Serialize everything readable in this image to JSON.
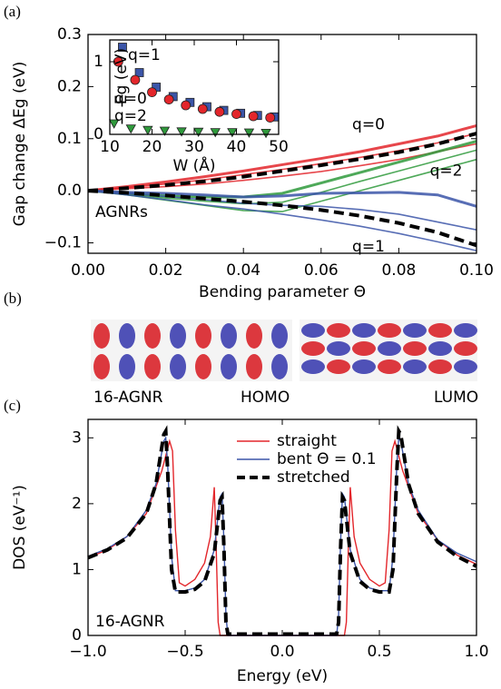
{
  "panel_labels": [
    "(a)",
    "(b)",
    "(c)"
  ],
  "panel_b": {
    "ribbon": "16-AGNR",
    "homo": "HOMO",
    "lumo": "LUMO"
  },
  "chart_data": [
    {
      "type": "line",
      "x_label": "Bending parameter Θ",
      "y_label": "Gap change ΔEg (eV)",
      "annotation": "AGNRs",
      "x": [
        0,
        0.01,
        0.02,
        0.03,
        0.04,
        0.05,
        0.06,
        0.07,
        0.08,
        0.09,
        0.1
      ],
      "xlim": [
        0,
        0.1
      ],
      "xticks": [
        {
          "value": 0,
          "label": "0.00"
        },
        {
          "value": 0.02,
          "label": "0.02"
        },
        {
          "value": 0.04,
          "label": "0.04"
        },
        {
          "value": 0.06,
          "label": "0.06"
        },
        {
          "value": 0.08,
          "label": "0.08"
        },
        {
          "value": 0.1,
          "label": "0.10"
        }
      ],
      "ylim": [
        -0.12,
        0.3
      ],
      "yticks": [
        {
          "value": -0.1,
          "label": "−0.1"
        },
        {
          "value": 0,
          "label": "0.0"
        },
        0.1,
        0.2,
        0.3
      ],
      "fit_color": "#000000",
      "series": [
        {
          "name": "q=0",
          "color": "#e3262b",
          "band": [
            [
              0,
              0.008,
              0.017,
              0.027,
              0.038,
              0.05,
              0.062,
              0.075,
              0.09,
              0.105,
              0.125
            ],
            [
              0,
              0.006,
              0.013,
              0.021,
              0.031,
              0.041,
              0.052,
              0.064,
              0.077,
              0.092,
              0.11
            ],
            [
              0,
              0.004,
              0.008,
              0.013,
              0.02,
              0.028,
              0.037,
              0.048,
              0.06,
              0.075,
              0.09
            ]
          ],
          "values": [
            0,
            0.005,
            0.011,
            0.018,
            0.027,
            0.038,
            0.049,
            0.061,
            0.074,
            0.09,
            0.11
          ]
        },
        {
          "name": "q=2",
          "color": "#2f9a3c",
          "band": [
            [
              0,
              -0.005,
              -0.01,
              -0.012,
              -0.012,
              -0.005,
              0.015,
              0.035,
              0.055,
              0.075,
              0.095
            ],
            [
              0,
              -0.006,
              -0.014,
              -0.02,
              -0.025,
              -0.022,
              -0.003,
              0.018,
              0.038,
              0.058,
              0.078
            ],
            [
              0,
              -0.008,
              -0.018,
              -0.028,
              -0.038,
              -0.04,
              -0.02,
              0,
              0.02,
              0.04,
              0.06
            ]
          ]
        },
        {
          "name": "q=1",
          "color": "#3b55a8",
          "band": [
            [
              0,
              -0.003,
              -0.005,
              -0.008,
              -0.012,
              -0.01,
              -0.005,
              -0.004,
              -0.003,
              -0.008,
              -0.03
            ],
            [
              0,
              -0.005,
              -0.011,
              -0.017,
              -0.024,
              -0.028,
              -0.03,
              -0.036,
              -0.045,
              -0.06,
              -0.075
            ],
            [
              0,
              -0.008,
              -0.017,
              -0.027,
              -0.035,
              -0.045,
              -0.056,
              -0.068,
              -0.082,
              -0.098,
              -0.115
            ]
          ],
          "values": [
            0,
            -0.004,
            -0.009,
            -0.015,
            -0.021,
            -0.028,
            -0.037,
            -0.048,
            -0.062,
            -0.08,
            -0.105
          ]
        }
      ]
    },
    {
      "type": "scatter",
      "x_label": "W (Å)",
      "y_label": "Eg (eV)",
      "xlim": [
        10,
        50
      ],
      "xticks": [
        10,
        20,
        30,
        40,
        50
      ],
      "ylim": [
        0,
        1.3
      ],
      "yticks": [
        0,
        1
      ],
      "series": [
        {
          "name": "q=1",
          "color": "#3b55a8",
          "marker": "square",
          "x": [
            13,
            17,
            21,
            25,
            29,
            33,
            37,
            41,
            45,
            49
          ],
          "values": [
            1.2,
            0.85,
            0.65,
            0.52,
            0.44,
            0.38,
            0.33,
            0.29,
            0.26,
            0.24
          ]
        },
        {
          "name": "q=0",
          "color": "#e3262b",
          "marker": "circle",
          "x": [
            12,
            16,
            20,
            24,
            28,
            32,
            36,
            40,
            44,
            48
          ],
          "values": [
            1.0,
            0.75,
            0.58,
            0.48,
            0.4,
            0.35,
            0.31,
            0.28,
            0.25,
            0.23
          ]
        },
        {
          "name": "q=2",
          "color": "#2f9a3c",
          "marker": "triangle",
          "x": [
            11,
            15,
            19,
            23,
            27,
            31,
            35,
            39,
            43,
            47
          ],
          "values": [
            0.15,
            0.08,
            0.06,
            0.05,
            0.04,
            0.035,
            0.03,
            0.03,
            0.025,
            0.02
          ]
        }
      ]
    },
    {
      "type": "line",
      "x_label": "Energy (eV)",
      "y_label": "DOS (eV⁻¹)",
      "annotation": "16-AGNR",
      "xlim": [
        -1,
        1
      ],
      "xticks": [
        {
          "value": -1,
          "label": "−1.0"
        },
        {
          "value": -0.5,
          "label": "−0.5"
        },
        {
          "value": 0,
          "label": "0.0"
        },
        {
          "value": 0.5,
          "label": "0.5"
        },
        {
          "value": 1,
          "label": "1.0"
        }
      ],
      "ylim": [
        0,
        3.28
      ],
      "yticks": [
        0,
        1,
        2,
        3
      ],
      "legend": "upper center",
      "series": [
        {
          "name": "straight",
          "color": "#e3262b",
          "dash": false,
          "x": [
            -1,
            -0.9,
            -0.8,
            -0.7,
            -0.62,
            -0.58,
            -0.565,
            -0.55,
            -0.53,
            -0.5,
            -0.45,
            -0.4,
            -0.37,
            -0.35,
            -0.34,
            -0.33,
            -0.32,
            -0.2,
            0,
            0.2,
            0.32,
            0.33,
            0.34,
            0.35,
            0.37,
            0.4,
            0.45,
            0.5,
            0.53,
            0.55,
            0.565,
            0.58,
            0.62,
            0.7,
            0.8,
            0.9,
            1
          ],
          "values": [
            1.18,
            1.3,
            1.5,
            1.85,
            2.5,
            2.95,
            2.8,
            1.6,
            0.8,
            0.75,
            0.85,
            1.1,
            1.5,
            2.25,
            1.3,
            0.2,
            0,
            0,
            0,
            0,
            0,
            0.2,
            1.3,
            2.25,
            1.5,
            1.1,
            0.85,
            0.75,
            0.8,
            1.6,
            2.8,
            2.95,
            2.5,
            1.85,
            1.45,
            1.22,
            1.08
          ]
        },
        {
          "name": "bent Θ = 0.1",
          "color": "#3b55a8",
          "dash": false,
          "x": [
            -1,
            -0.9,
            -0.8,
            -0.7,
            -0.65,
            -0.61,
            -0.6,
            -0.59,
            -0.57,
            -0.55,
            -0.5,
            -0.45,
            -0.4,
            -0.35,
            -0.32,
            -0.31,
            -0.3,
            -0.29,
            -0.28,
            -0.2,
            0,
            0.2,
            0.28,
            0.29,
            0.3,
            0.31,
            0.32,
            0.35,
            0.4,
            0.45,
            0.5,
            0.55,
            0.57,
            0.59,
            0.6,
            0.61,
            0.65,
            0.7,
            0.8,
            0.9,
            1
          ],
          "values": [
            1.2,
            1.32,
            1.5,
            1.9,
            2.3,
            2.95,
            3.0,
            2.6,
            1.2,
            0.68,
            0.68,
            0.72,
            0.85,
            1.3,
            2.1,
            2.15,
            1.4,
            0.3,
            0,
            0,
            0,
            0,
            0,
            0.3,
            1.4,
            2.15,
            2.1,
            1.3,
            0.85,
            0.72,
            0.68,
            0.68,
            1.2,
            2.6,
            3.0,
            2.95,
            2.3,
            1.9,
            1.45,
            1.25,
            1.12
          ]
        },
        {
          "name": "stretched",
          "color": "#000000",
          "dash": true,
          "x": [
            -1,
            -0.9,
            -0.8,
            -0.7,
            -0.65,
            -0.61,
            -0.6,
            -0.59,
            -0.57,
            -0.55,
            -0.5,
            -0.45,
            -0.4,
            -0.35,
            -0.32,
            -0.31,
            -0.3,
            -0.29,
            -0.28,
            -0.2,
            0,
            0.2,
            0.28,
            0.29,
            0.3,
            0.31,
            0.32,
            0.35,
            0.4,
            0.45,
            0.5,
            0.55,
            0.57,
            0.59,
            0.6,
            0.61,
            0.65,
            0.7,
            0.8,
            0.9,
            1
          ],
          "values": [
            1.18,
            1.3,
            1.48,
            1.85,
            2.3,
            3.05,
            3.1,
            2.5,
            1.0,
            0.66,
            0.66,
            0.7,
            0.82,
            1.25,
            2.05,
            2.1,
            1.3,
            0.2,
            0.02,
            0.02,
            0.02,
            0.02,
            0.02,
            0.2,
            1.3,
            2.1,
            2.05,
            1.25,
            0.82,
            0.7,
            0.66,
            0.66,
            1.0,
            2.5,
            3.1,
            3.05,
            2.3,
            1.85,
            1.42,
            1.2,
            1.05
          ]
        }
      ]
    }
  ]
}
